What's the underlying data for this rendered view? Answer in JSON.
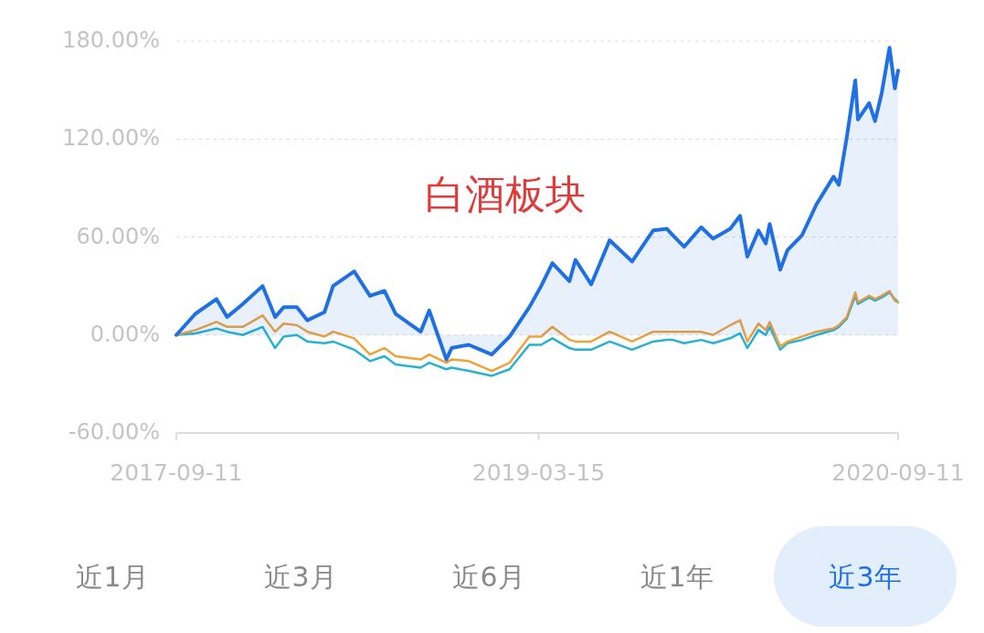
{
  "chart_data": {
    "type": "line",
    "title": "白酒板块",
    "x": [
      "2017-09-11",
      "2017-10-10",
      "2017-11-11",
      "2017-11-27",
      "2017-12-21",
      "2018-01-20",
      "2018-02-08",
      "2018-02-21",
      "2018-03-13",
      "2018-03-29",
      "2018-04-24",
      "2018-05-07",
      "2018-06-08",
      "2018-07-02",
      "2018-07-24",
      "2018-08-10",
      "2018-09-17",
      "2018-09-30",
      "2018-10-26",
      "2018-11-03",
      "2018-11-29",
      "2019-01-03",
      "2019-01-30",
      "2019-03-01",
      "2019-03-19",
      "2019-04-05",
      "2019-05-01",
      "2019-05-10",
      "2019-06-03",
      "2019-07-01",
      "2019-08-04",
      "2019-09-05",
      "2019-09-26",
      "2019-10-05",
      "2019-10-22",
      "2019-11-17",
      "2019-12-05",
      "2019-12-31",
      "2020-01-15",
      "2020-01-26",
      "2020-02-12",
      "2020-02-23",
      "2020-02-29",
      "2020-03-16",
      "2020-03-27",
      "2020-04-18",
      "2020-05-10",
      "2020-06-05",
      "2020-06-13",
      "2020-06-25",
      "2020-07-08",
      "2020-07-12",
      "2020-07-29",
      "2020-08-07",
      "2020-08-17",
      "2020-08-29",
      "2020-09-06",
      "2020-09-11"
    ],
    "series": [
      {
        "type": "area",
        "color": "#1f6fe5",
        "values": [
          0,
          13,
          22,
          11,
          19,
          30,
          11,
          17,
          17,
          9,
          14,
          30,
          39,
          24,
          27,
          13,
          2,
          15,
          -15,
          -8,
          -6,
          -12,
          -1,
          17,
          30,
          44,
          33,
          46,
          31,
          58,
          45,
          64,
          65,
          61,
          54,
          66,
          59,
          65,
          73,
          48,
          64,
          56,
          68,
          40,
          52,
          61,
          80,
          97,
          92,
          121,
          156,
          132,
          142,
          131,
          148,
          176,
          151,
          162
        ]
      },
      {
        "color": "#f0a23a",
        "values": [
          0,
          3,
          8,
          5,
          5,
          12,
          2,
          7,
          6,
          2,
          -1,
          2,
          -2,
          -12,
          -8,
          -13,
          -15,
          -12,
          -17,
          -15,
          -16,
          -22,
          -17,
          -1,
          -1,
          5,
          -3,
          -4,
          -4,
          2,
          -4,
          2,
          2,
          2,
          2,
          2,
          0,
          6,
          9,
          -4,
          7,
          3,
          8,
          -7,
          -4,
          -1,
          2,
          4,
          6,
          11,
          26,
          20,
          24,
          22,
          24,
          27,
          21,
          20
        ]
      },
      {
        "color": "#26b2d0",
        "values": [
          0,
          1,
          4,
          2,
          0,
          5,
          -8,
          -1,
          0,
          -4,
          -5,
          -4,
          -9,
          -16,
          -13,
          -18,
          -20,
          -17,
          -21,
          -20,
          -22,
          -25,
          -21,
          -6,
          -6,
          -2,
          -8,
          -9,
          -9,
          -4,
          -9,
          -4,
          -3,
          -3,
          -5,
          -3,
          -5,
          -2,
          1,
          -8,
          3,
          0,
          5,
          -9,
          -5,
          -3,
          0,
          3,
          5,
          10,
          24,
          19,
          23,
          21,
          23,
          26,
          22,
          20
        ]
      }
    ],
    "xlim": [
      "2017-09-11",
      "2020-09-11"
    ],
    "xticks": [
      {
        "value": "2017-09-11",
        "label": "2017-09-11"
      },
      {
        "value": "2019-03-15",
        "label": "2019-03-15"
      },
      {
        "value": "2020-09-11",
        "label": "2020-09-11"
      }
    ],
    "ylim": [
      -60,
      180
    ],
    "yticks": [
      {
        "value": -60,
        "label": "-60.00%"
      },
      {
        "value": 0,
        "label": "0.00%"
      },
      {
        "value": 60,
        "label": "60.00%"
      },
      {
        "value": 120,
        "label": "120.00%"
      },
      {
        "value": 180,
        "label": "180.00%"
      }
    ],
    "grid": "y",
    "line_style": "solid",
    "annotations": [
      "近1月",
      "近3月",
      "近6月",
      "近1年",
      "近3年"
    ]
  }
}
